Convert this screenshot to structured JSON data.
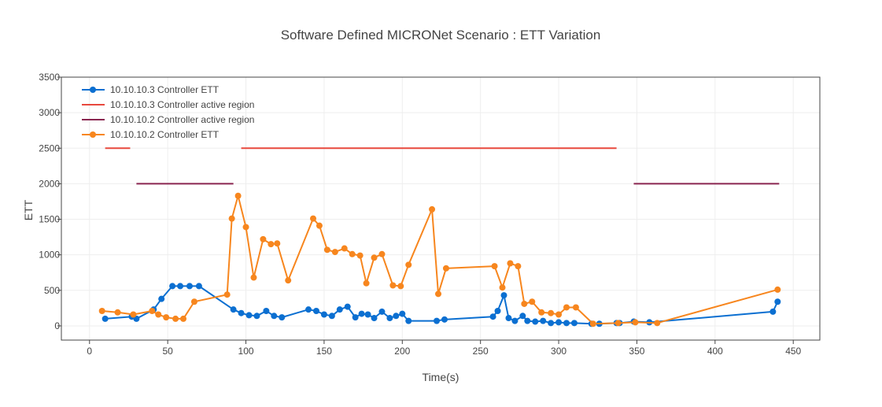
{
  "chart_data": {
    "type": "line",
    "title": "Software Defined MICRONet Scenario : ETT Variation",
    "xlabel": "Time(s)",
    "ylabel": "ETT",
    "xlim": [
      -18,
      467
    ],
    "ylim": [
      -200,
      3500
    ],
    "x_ticks": [
      0,
      50,
      100,
      150,
      200,
      250,
      300,
      350,
      400,
      450
    ],
    "y_ticks": [
      0,
      500,
      1000,
      1500,
      2000,
      2500,
      3000,
      3500
    ],
    "grid": true,
    "legend_position": "top-left",
    "series": [
      {
        "name": "10.10.10.3 Controller ETT",
        "kind": "line+markers",
        "color": "#0b6fd1",
        "x": [
          10,
          27,
          30,
          41,
          46,
          53,
          58,
          64,
          70,
          92,
          97,
          102,
          107,
          113,
          118,
          123,
          140,
          145,
          150,
          155,
          160,
          165,
          170,
          174,
          178,
          182,
          187,
          192,
          196,
          200,
          204,
          222,
          227,
          258,
          261,
          265,
          268,
          272,
          277,
          280,
          285,
          290,
          295,
          300,
          305,
          310,
          321,
          326,
          337,
          339,
          348,
          358,
          437,
          440
        ],
        "y": [
          100,
          130,
          100,
          230,
          380,
          560,
          560,
          560,
          560,
          230,
          180,
          150,
          140,
          210,
          140,
          120,
          230,
          210,
          160,
          140,
          230,
          270,
          120,
          170,
          160,
          110,
          200,
          110,
          140,
          170,
          70,
          70,
          90,
          130,
          210,
          430,
          110,
          70,
          140,
          70,
          60,
          70,
          40,
          50,
          40,
          40,
          30,
          30,
          40,
          40,
          60,
          50,
          200,
          340
        ]
      },
      {
        "name": "10.10.10.3 Controller active region",
        "kind": "line",
        "color": "#e8483d",
        "segments": [
          {
            "x": [
              10,
              26
            ],
            "y": [
              2500,
              2500
            ]
          },
          {
            "x": [
              97,
              337
            ],
            "y": [
              2500,
              2500
            ]
          }
        ]
      },
      {
        "name": "10.10.10.2 Controller active region",
        "kind": "line",
        "color": "#8a2650",
        "segments": [
          {
            "x": [
              30,
              92
            ],
            "y": [
              2000,
              2000
            ]
          },
          {
            "x": [
              348,
              441
            ],
            "y": [
              2000,
              2000
            ]
          }
        ]
      },
      {
        "name": "10.10.10.2 Controller ETT",
        "kind": "line+markers",
        "color": "#f7861e",
        "x": [
          8,
          18,
          28,
          40,
          44,
          49,
          55,
          60,
          67,
          88,
          91,
          95,
          100,
          105,
          111,
          116,
          120,
          127,
          143,
          147,
          152,
          157,
          163,
          168,
          173,
          177,
          182,
          187,
          194,
          199,
          204,
          219,
          223,
          228,
          259,
          264,
          269,
          274,
          278,
          283,
          289,
          295,
          300,
          305,
          311,
          322,
          338,
          349,
          363,
          440
        ],
        "y": [
          210,
          190,
          160,
          210,
          160,
          120,
          100,
          100,
          340,
          440,
          1510,
          1830,
          1390,
          680,
          1220,
          1150,
          1160,
          640,
          1510,
          1410,
          1070,
          1040,
          1090,
          1010,
          990,
          600,
          960,
          1010,
          570,
          560,
          860,
          1640,
          450,
          810,
          840,
          540,
          880,
          840,
          310,
          340,
          190,
          180,
          160,
          260,
          260,
          30,
          40,
          50,
          40,
          510
        ]
      }
    ]
  }
}
